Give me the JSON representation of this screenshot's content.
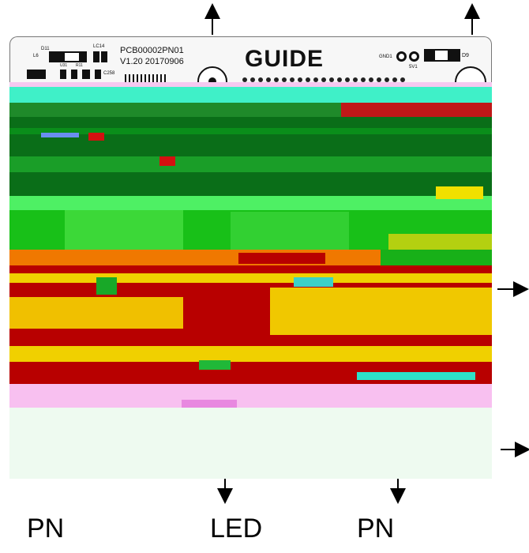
{
  "board": {
    "part_number": "PCB00002PN01",
    "version_date": "V1.20  20170906",
    "brand": "GUIDE",
    "silkscreen": {
      "lc14": "LC14",
      "c258": "C258",
      "d11": "D11",
      "d9": "D9",
      "gnd1": "GND1",
      "5v1": "5V1",
      "u31": "U31",
      "r11": "R11",
      "l6": "L6"
    },
    "colors": {
      "pink": "#f5b8f0",
      "cyan": "#44f0c8",
      "dark_green": "#0a6e18",
      "green": "#18b818",
      "bright_green": "#50e050",
      "orange": "#f07800",
      "dark_red": "#b80000",
      "yellow": "#f0d000",
      "pale_green": "#eefaf0",
      "red": "#d41010"
    }
  },
  "labels": {
    "bottom_left": "PN",
    "bottom_center": "LED",
    "bottom_right": "PN"
  },
  "arrows": [
    "up-arrow-left",
    "up-arrow-right",
    "right-arrow-upper",
    "right-arrow-lower",
    "down-arrow-led",
    "down-arrow-pn"
  ]
}
